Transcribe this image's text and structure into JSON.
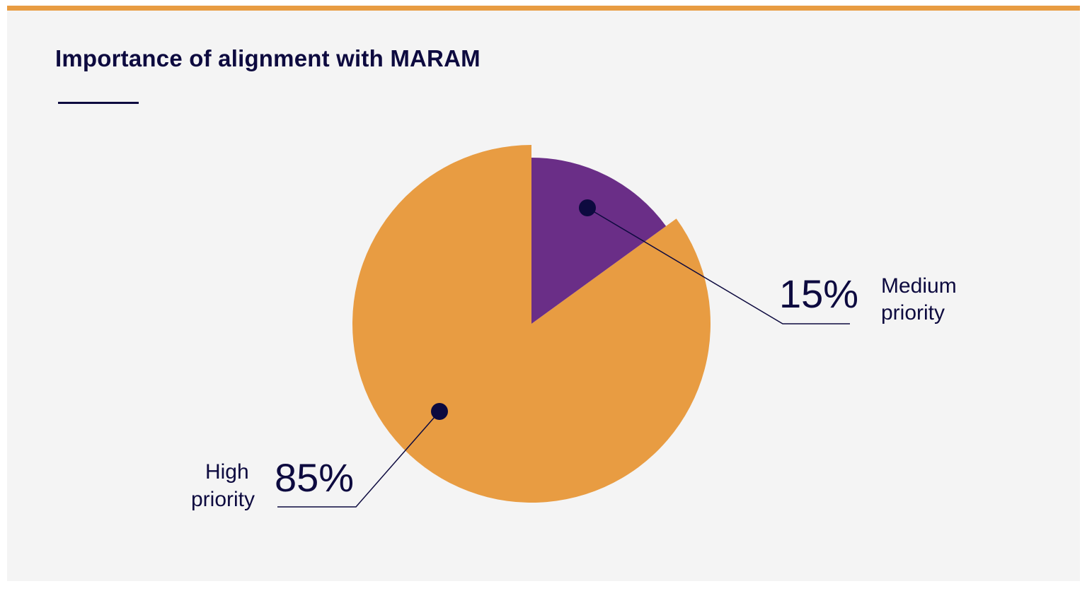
{
  "colors": {
    "accent": "#E89C42",
    "navy": "#0D0A3F",
    "purple": "#6A2E87",
    "background": "#F4F4F4"
  },
  "chart_data": {
    "type": "pie",
    "title": "Importance of alignment with MARAM",
    "slices": [
      {
        "label_lines": [
          "Medium",
          "priority"
        ],
        "value": 15,
        "value_label": "15%",
        "color": "#6A2E87"
      },
      {
        "label_lines": [
          "High",
          "priority"
        ],
        "value": 85,
        "value_label": "85%",
        "color": "#E89C42"
      }
    ]
  }
}
